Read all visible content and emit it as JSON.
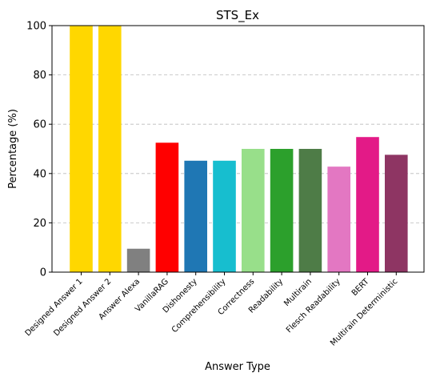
{
  "chart_data": {
    "type": "bar",
    "title": "STS_Ex",
    "xlabel": "Answer Type",
    "ylabel": "Percentage (%)",
    "ylim": [
      0,
      100
    ],
    "yticks": [
      0,
      20,
      40,
      60,
      80,
      100
    ],
    "grid": "y-dashed",
    "categories": [
      "Designed Answer 1",
      "Designed Answer 2",
      "Answer Alexa",
      "VanillaRAG",
      "Dishonesty",
      "Comprehensibility",
      "Correctness",
      "Readability",
      "Multirain",
      "Flesch Readability",
      "BERT",
      "Multirain Deterministic"
    ],
    "values": [
      100,
      100,
      9.5,
      52.5,
      45.2,
      45.2,
      50,
      50,
      50,
      42.8,
      54.8,
      47.6
    ],
    "colors": [
      "#FFD700",
      "#FFD700",
      "#808080",
      "#FF0000",
      "#1F77B4",
      "#17BECF",
      "#98DF8A",
      "#2CA02C",
      "#4E7C47",
      "#E377C2",
      "#E31A87",
      "#8E3563"
    ]
  }
}
